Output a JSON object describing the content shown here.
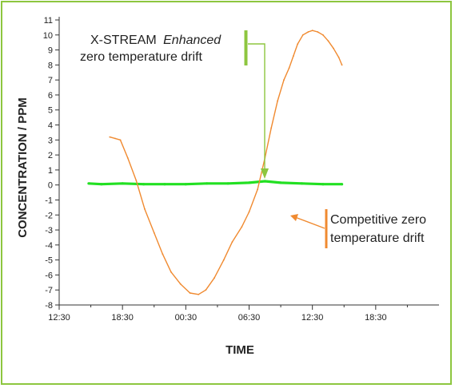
{
  "chart_data": {
    "type": "line",
    "xlabel": "TIME",
    "ylabel": "CONCENTRATION / PPM",
    "xlim": [
      0,
      36
    ],
    "ylim": [
      -8,
      11
    ],
    "x_ticks": [
      {
        "label": "12:30",
        "x": 0
      },
      {
        "label": "18:30",
        "x": 6
      },
      {
        "label": "00:30",
        "x": 12
      },
      {
        "label": "06:30",
        "x": 18
      },
      {
        "label": "12:30",
        "x": 24
      },
      {
        "label": "18:30",
        "x": 30
      }
    ],
    "y_ticks": [
      11,
      10,
      9,
      8,
      7,
      6,
      5,
      4,
      3,
      2,
      1,
      0,
      -1,
      -2,
      -3,
      -4,
      -5,
      -6,
      -7,
      -8
    ],
    "grid": false,
    "series": [
      {
        "color": "#22e022",
        "x": [
          2.8,
          4,
          6,
          8,
          10,
          12,
          14,
          16,
          18,
          19.5,
          21,
          23,
          25,
          26.8
        ],
        "y": [
          0.1,
          0.05,
          0.1,
          0.05,
          0.05,
          0.05,
          0.1,
          0.1,
          0.15,
          0.25,
          0.15,
          0.1,
          0.05,
          0.05
        ]
      },
      {
        "color": "#f08a30",
        "x": [
          4.8,
          5.3,
          5.8,
          6.5,
          7.3,
          8.1,
          9,
          9.8,
          10.6,
          11.5,
          12.4,
          13.2,
          13.9,
          14.7,
          15.6,
          16.4,
          17.3,
          18,
          18.8,
          19.5,
          20.1,
          20.7,
          21.3,
          21.8,
          22.2,
          22.6,
          23.1,
          23.6,
          24,
          24.5,
          25,
          25.5,
          26,
          26.5,
          26.8
        ],
        "y": [
          3.2,
          3.1,
          3,
          1.8,
          0.3,
          -1.6,
          -3.2,
          -4.6,
          -5.8,
          -6.6,
          -7.2,
          -7.3,
          -7,
          -6.2,
          -5,
          -3.8,
          -2.8,
          -1.8,
          -0.3,
          1.8,
          3.8,
          5.6,
          7,
          7.8,
          8.6,
          9.4,
          10,
          10.2,
          10.3,
          10.2,
          10,
          9.6,
          9.1,
          8.5,
          8
        ]
      }
    ],
    "annotations": [
      {
        "name": "x-stream",
        "lines": [
          "X-STREAM",
          "Enhanced",
          "zero temperature drift"
        ]
      },
      {
        "name": "competitive",
        "lines": [
          "Competitive zero",
          "temperature drift"
        ]
      }
    ]
  }
}
